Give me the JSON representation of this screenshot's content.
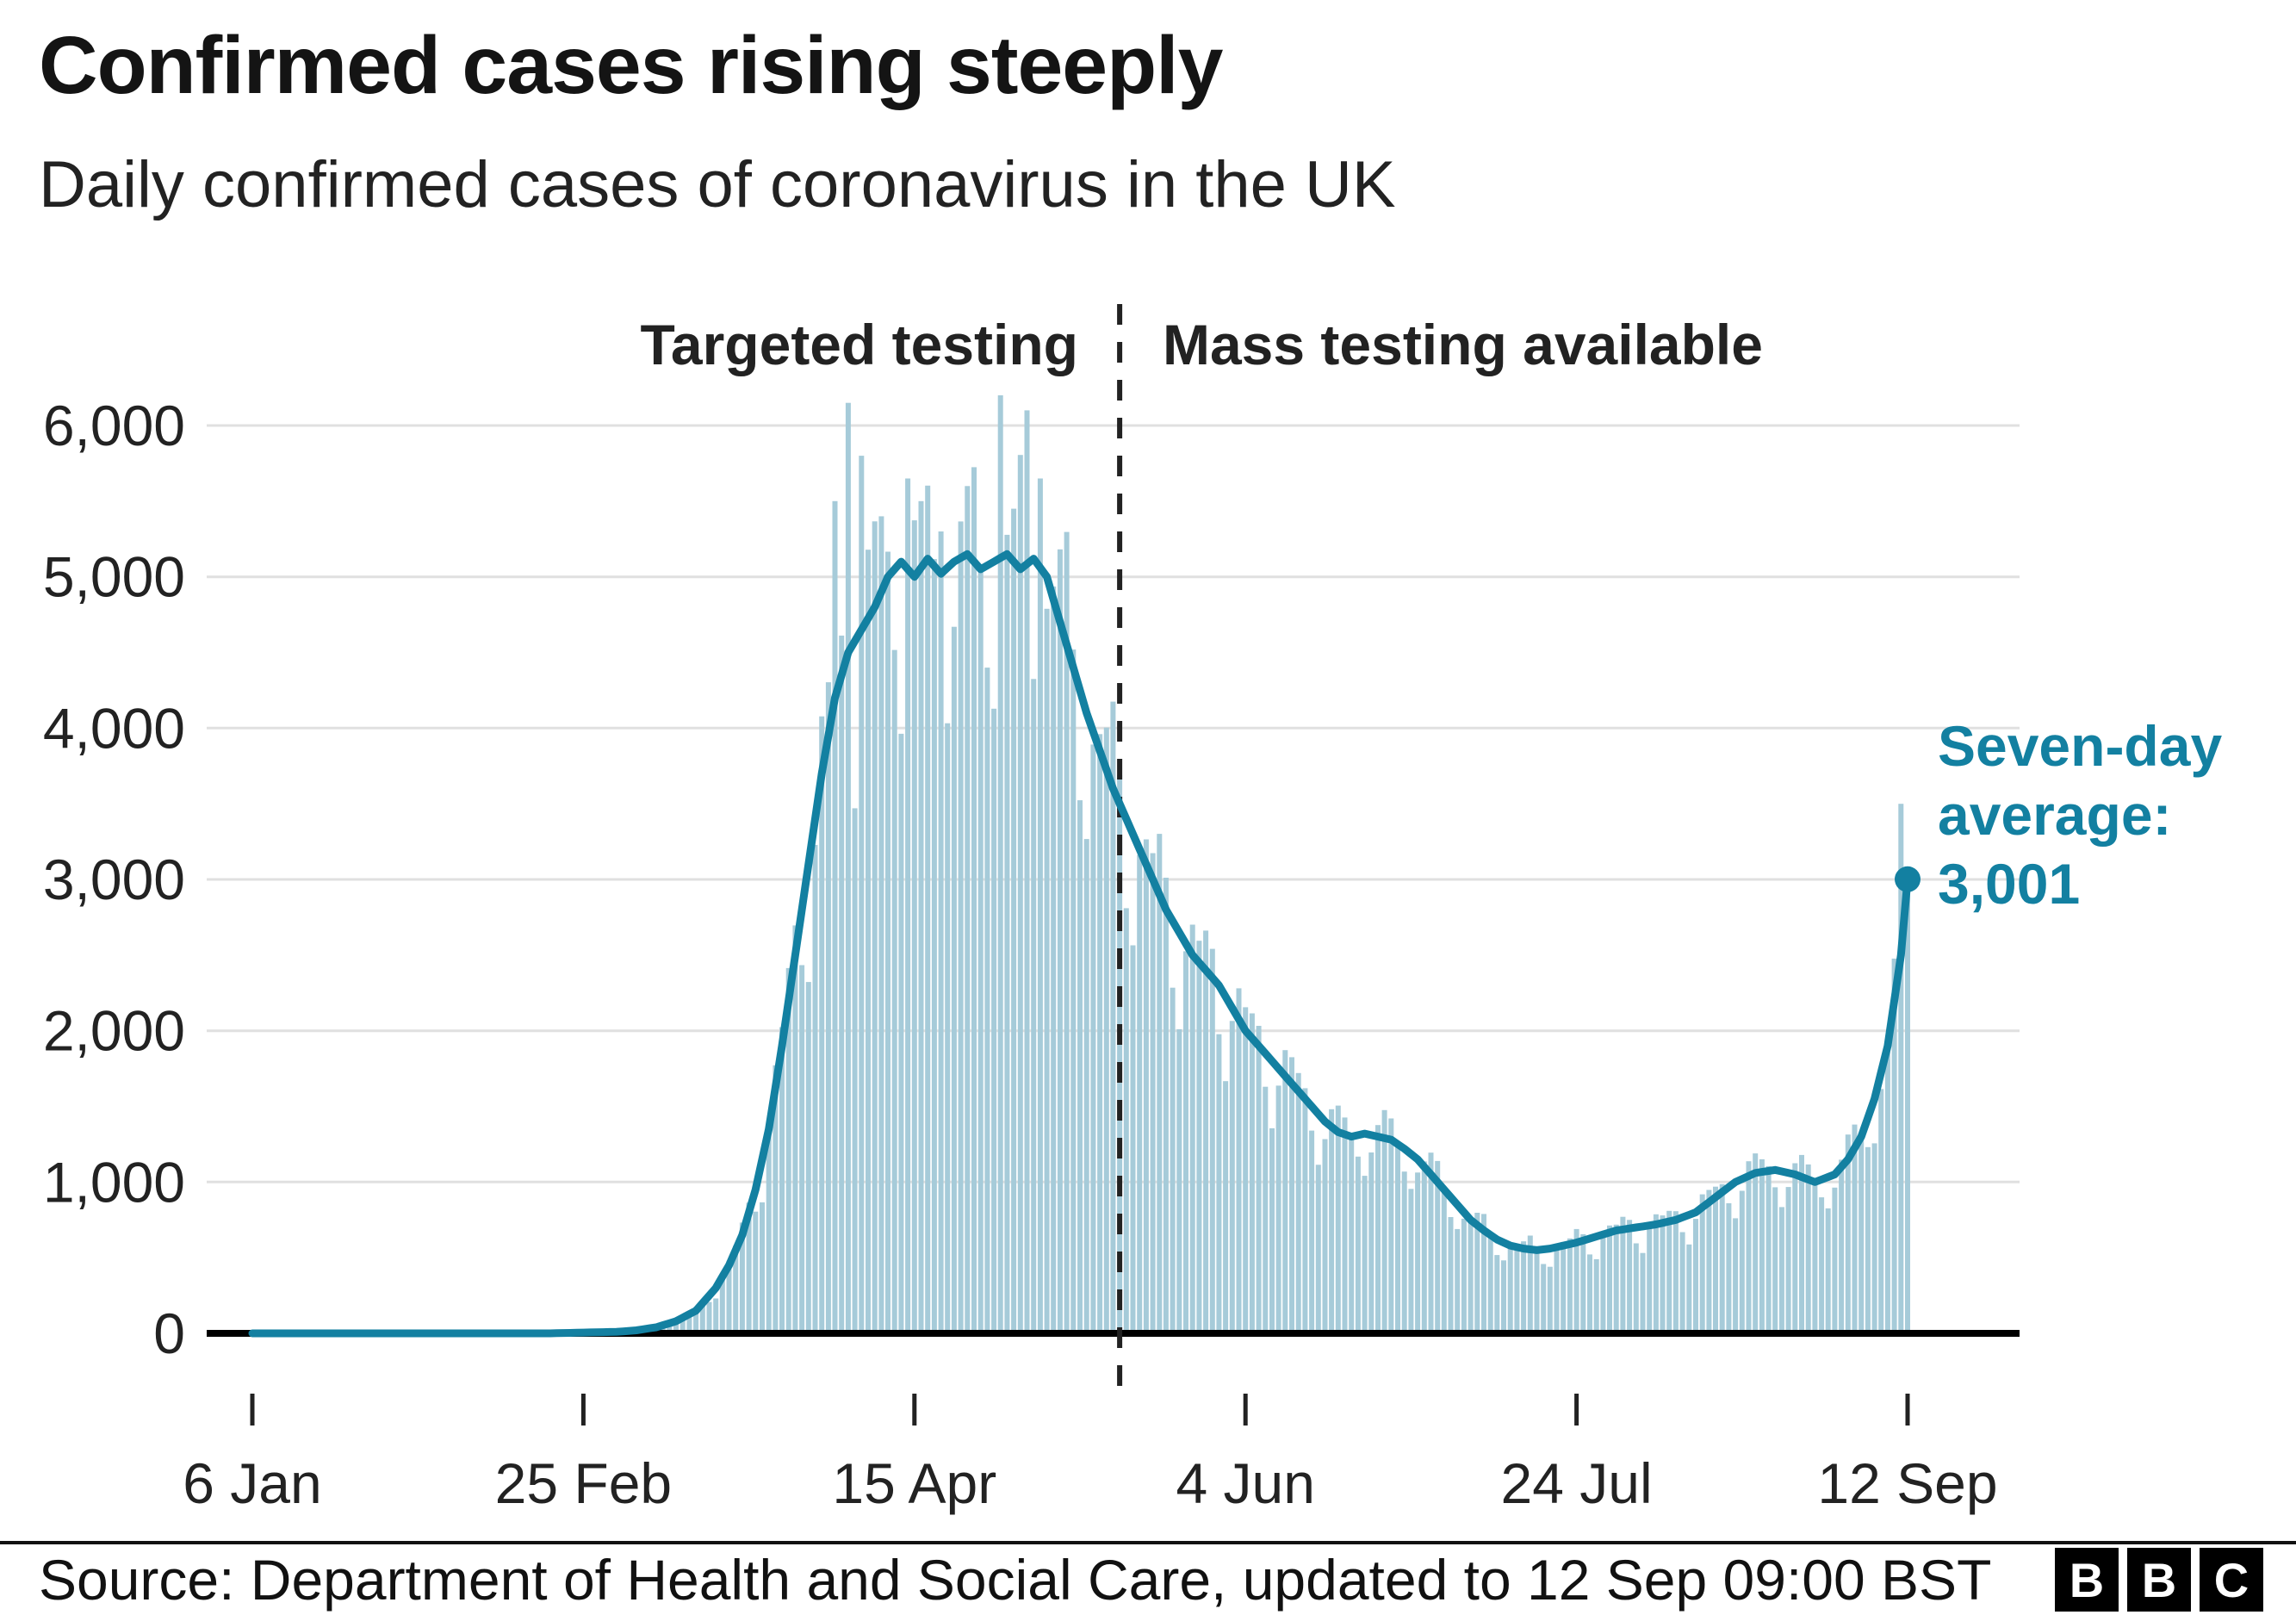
{
  "title": "Confirmed cases rising steeply",
  "subtitle": "Daily confirmed cases of coronavirus in the UK",
  "annotations": {
    "left_label": "Targeted testing",
    "right_label": "Mass testing available",
    "avg_label_lines": [
      "Seven-day",
      "average:",
      "3,001"
    ]
  },
  "footer": {
    "source": "Source: Department of Health and Social Care, updated to 12 Sep 09:00 BST",
    "logo_letters": [
      "B",
      "B",
      "C"
    ]
  },
  "colors": {
    "bar": "#a6cbd9",
    "line": "#1380a1",
    "grid": "#e0e0e0",
    "axis": "#000000",
    "text": "#222222",
    "dashed": "#222222"
  },
  "chart_data": {
    "type": "bar+line",
    "title": "Daily confirmed cases of coronavirus in the UK",
    "x_tick_labels": [
      "6 Jan",
      "25 Feb",
      "15 Apr",
      "4 Jun",
      "24 Jul",
      "12 Sep"
    ],
    "x_tick_days": [
      0,
      50,
      100,
      150,
      200,
      250
    ],
    "y_ticks": [
      0,
      1000,
      2000,
      3000,
      4000,
      5000,
      6000
    ],
    "y_tick_labels": [
      "0",
      "1,000",
      "2,000",
      "3,000",
      "4,000",
      "5,000",
      "6,000"
    ],
    "ylim": [
      0,
      6400
    ],
    "days_total": 250,
    "divider_day": 131,
    "final_avg_value": 3001,
    "series_names": [
      "Daily confirmed cases (bars)",
      "Seven-day average (line)"
    ],
    "seven_day_avg_anchors": [
      [
        0,
        0
      ],
      [
        45,
        0
      ],
      [
        50,
        5
      ],
      [
        55,
        10
      ],
      [
        58,
        20
      ],
      [
        61,
        40
      ],
      [
        64,
        80
      ],
      [
        67,
        150
      ],
      [
        70,
        300
      ],
      [
        72,
        450
      ],
      [
        74,
        650
      ],
      [
        76,
        950
      ],
      [
        78,
        1350
      ],
      [
        80,
        1900
      ],
      [
        82,
        2500
      ],
      [
        84,
        3100
      ],
      [
        86,
        3700
      ],
      [
        88,
        4200
      ],
      [
        90,
        4500
      ],
      [
        92,
        4650
      ],
      [
        94,
        4800
      ],
      [
        96,
        5000
      ],
      [
        98,
        5100
      ],
      [
        100,
        5000
      ],
      [
        102,
        5120
      ],
      [
        104,
        5020
      ],
      [
        106,
        5100
      ],
      [
        108,
        5150
      ],
      [
        110,
        5050
      ],
      [
        112,
        5100
      ],
      [
        114,
        5150
      ],
      [
        116,
        5050
      ],
      [
        118,
        5120
      ],
      [
        120,
        5000
      ],
      [
        122,
        4700
      ],
      [
        124,
        4400
      ],
      [
        126,
        4100
      ],
      [
        128,
        3850
      ],
      [
        130,
        3600
      ],
      [
        132,
        3400
      ],
      [
        134,
        3200
      ],
      [
        136,
        3000
      ],
      [
        138,
        2800
      ],
      [
        140,
        2650
      ],
      [
        142,
        2500
      ],
      [
        144,
        2400
      ],
      [
        146,
        2300
      ],
      [
        148,
        2150
      ],
      [
        150,
        2000
      ],
      [
        152,
        1900
      ],
      [
        154,
        1800
      ],
      [
        156,
        1700
      ],
      [
        158,
        1600
      ],
      [
        160,
        1500
      ],
      [
        162,
        1400
      ],
      [
        164,
        1330
      ],
      [
        166,
        1300
      ],
      [
        168,
        1320
      ],
      [
        170,
        1300
      ],
      [
        172,
        1280
      ],
      [
        174,
        1220
      ],
      [
        176,
        1150
      ],
      [
        178,
        1050
      ],
      [
        180,
        950
      ],
      [
        182,
        850
      ],
      [
        184,
        750
      ],
      [
        186,
        680
      ],
      [
        188,
        620
      ],
      [
        190,
        580
      ],
      [
        192,
        560
      ],
      [
        194,
        550
      ],
      [
        196,
        560
      ],
      [
        198,
        580
      ],
      [
        200,
        600
      ],
      [
        203,
        640
      ],
      [
        206,
        680
      ],
      [
        209,
        700
      ],
      [
        212,
        720
      ],
      [
        215,
        750
      ],
      [
        218,
        800
      ],
      [
        221,
        900
      ],
      [
        224,
        1000
      ],
      [
        227,
        1060
      ],
      [
        230,
        1080
      ],
      [
        233,
        1050
      ],
      [
        236,
        1000
      ],
      [
        239,
        1050
      ],
      [
        241,
        1150
      ],
      [
        243,
        1300
      ],
      [
        245,
        1550
      ],
      [
        247,
        1900
      ],
      [
        249,
        2500
      ],
      [
        250,
        3001
      ]
    ],
    "weekly_pattern": [
      0.78,
      0.95,
      1.06,
      1.1,
      1.12,
      1.04,
      0.86
    ],
    "bar_spike_overrides": [
      [
        88,
        5500
      ],
      [
        90,
        6150
      ],
      [
        92,
        5800
      ],
      [
        95,
        5400
      ],
      [
        99,
        5650
      ],
      [
        101,
        5500
      ],
      [
        104,
        5300
      ],
      [
        108,
        5600
      ],
      [
        113,
        6200
      ],
      [
        115,
        5450
      ],
      [
        117,
        6100
      ],
      [
        119,
        5650
      ],
      [
        249,
        3500
      ]
    ]
  }
}
